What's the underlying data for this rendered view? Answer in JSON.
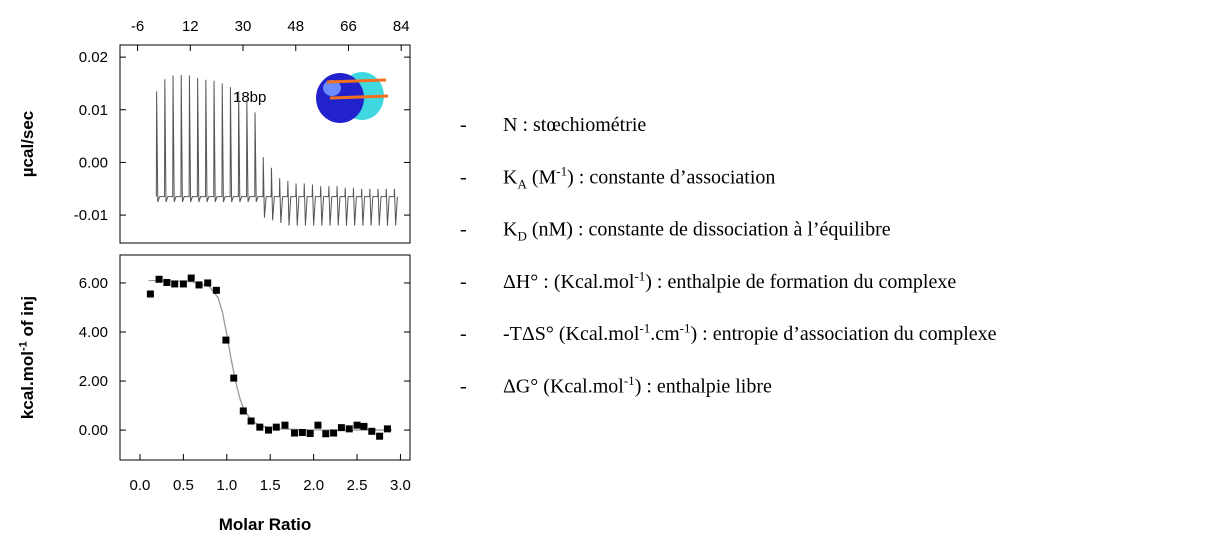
{
  "chart_data": [
    {
      "type": "line",
      "ylabel": "µcal/sec",
      "annotation": "18bp",
      "xaxis_position": "top",
      "xlim": [
        -12,
        87
      ],
      "xticks": [
        -6,
        12,
        30,
        48,
        66,
        84
      ],
      "ylim": [
        -0.0153,
        0.0223
      ],
      "yticks": [
        0.02,
        0.01,
        {
          "value": 0,
          "label": "0.00"
        },
        -0.01
      ],
      "x": [
        0.4,
        0.5,
        0.9,
        1.5,
        3.2,
        3.3,
        3.7,
        4.3,
        6,
        6.1,
        6.5,
        7.1,
        8.8,
        8.9,
        9.3,
        9.9,
        11.6,
        11.7,
        12.1,
        12.7,
        14.4,
        14.5,
        14.9,
        15.5,
        17.2,
        17.3,
        17.7,
        18.3,
        20,
        20.1,
        20.5,
        21.1,
        22.8,
        22.9,
        23.3,
        23.9,
        25.6,
        25.7,
        26.1,
        26.7,
        28.4,
        28.5,
        28.9,
        29.5,
        31.2,
        31.3,
        31.7,
        32.3,
        34,
        34.1,
        34.5,
        35.1,
        36.8,
        36.9,
        37.3,
        37.9,
        39.6,
        39.7,
        40.1,
        40.7,
        42.4,
        42.5,
        42.9,
        43.5,
        45.2,
        45.3,
        45.7,
        46.3,
        48,
        48.1,
        48.5,
        49.1,
        50.8,
        50.9,
        51.3,
        51.9,
        53.6,
        53.7,
        54.1,
        54.7,
        56.4,
        56.5,
        56.9,
        57.5,
        59.2,
        59.3,
        59.7,
        60.3,
        62,
        62.1,
        62.5,
        63.1,
        64.8,
        64.9,
        65.3,
        65.9,
        67.6,
        67.7,
        68.1,
        68.7,
        70.4,
        70.5,
        70.9,
        71.5,
        73.2,
        73.3,
        73.7,
        74.3,
        76,
        76.1,
        76.5,
        77.1,
        78.8,
        78.9,
        79.3,
        79.9,
        81.6,
        81.7,
        82.1,
        82.7
      ],
      "series": [
        {
          "color": "#555555",
          "values": [
            -0.0065,
            0.0135,
            -0.0075,
            -0.0065,
            -0.0065,
            0.0158,
            -0.0075,
            -0.0065,
            -0.0065,
            0.0165,
            -0.0075,
            -0.0065,
            -0.0065,
            0.0166,
            -0.0075,
            -0.0065,
            -0.0065,
            0.0165,
            -0.0075,
            -0.0065,
            -0.0065,
            0.016,
            -0.0075,
            -0.0065,
            -0.0065,
            0.0157,
            -0.0075,
            -0.0065,
            -0.0065,
            0.0155,
            -0.0075,
            -0.0065,
            -0.0065,
            0.015,
            -0.0075,
            -0.0065,
            -0.0065,
            0.0143,
            -0.0075,
            -0.0065,
            -0.0065,
            0.0135,
            -0.0075,
            -0.0065,
            -0.0065,
            0.012,
            -0.0075,
            -0.0065,
            -0.0065,
            0.0095,
            -0.0075,
            -0.0065,
            -0.0065,
            0.001,
            -0.0105,
            -0.0065,
            -0.0065,
            -0.001,
            -0.011,
            -0.0065,
            -0.0065,
            -0.003,
            -0.0115,
            -0.0065,
            -0.0065,
            -0.0035,
            -0.012,
            -0.0065,
            -0.0065,
            -0.004,
            -0.012,
            -0.0065,
            -0.0065,
            -0.004,
            -0.012,
            -0.0065,
            -0.0065,
            -0.0042,
            -0.012,
            -0.0065,
            -0.0065,
            -0.0045,
            -0.012,
            -0.0065,
            -0.0065,
            -0.0045,
            -0.012,
            -0.0065,
            -0.0065,
            -0.0045,
            -0.012,
            -0.0065,
            -0.0065,
            -0.0048,
            -0.012,
            -0.0065,
            -0.0065,
            -0.0048,
            -0.012,
            -0.0065,
            -0.0065,
            -0.005,
            -0.012,
            -0.0065,
            -0.0065,
            -0.005,
            -0.012,
            -0.0065,
            -0.0065,
            -0.005,
            -0.012,
            -0.0065,
            -0.0065,
            -0.005,
            -0.012,
            -0.0065,
            -0.0065,
            -0.005,
            -0.012,
            -0.0065
          ]
        }
      ]
    },
    {
      "type": "scatter",
      "xlabel": "Molar Ratio",
      "ylabel": [
        "kcal.mol",
        {
          "sup": "-1"
        },
        " of inj"
      ],
      "xlim": [
        -0.23,
        3.11
      ],
      "xticks": [
        {
          "value": 0,
          "label": "0.0"
        },
        0.5,
        {
          "value": 1,
          "label": "1.0"
        },
        1.5,
        {
          "value": 2,
          "label": "2.0"
        },
        2.5,
        {
          "value": 3,
          "label": "3.0"
        }
      ],
      "ylim": [
        -1.22,
        7.14
      ],
      "yticks": [
        {
          "value": 6,
          "label": "6.00"
        },
        {
          "value": 4,
          "label": "4.00"
        },
        {
          "value": 2,
          "label": "2.00"
        },
        {
          "value": 0,
          "label": "0.00"
        }
      ],
      "series": [
        {
          "mode": "line",
          "color": "#999999",
          "x": [
            0.1,
            0.6,
            0.8,
            0.9,
            0.95,
            1,
            1.05,
            1.1,
            1.15,
            1.2,
            1.3,
            1.4,
            1.6,
            2,
            2.9
          ],
          "values": [
            6.1,
            6.05,
            5.85,
            5.4,
            4.8,
            3.9,
            2.9,
            2,
            1.3,
            0.8,
            0.35,
            0.15,
            0.05,
            0.01,
            0
          ]
        },
        {
          "mode": "markers",
          "color": "#000000",
          "x": [
            0.12,
            0.22,
            0.31,
            0.4,
            0.5,
            0.59,
            0.68,
            0.78,
            0.88,
            0.99,
            1.08,
            1.19,
            1.28,
            1.38,
            1.48,
            1.57,
            1.67,
            1.78,
            1.87,
            1.96,
            2.05,
            2.14,
            2.23,
            2.32,
            2.41,
            2.5,
            2.58,
            2.67,
            2.76,
            2.85
          ],
          "values": [
            5.55,
            6.15,
            6.02,
            5.96,
            5.96,
            6.2,
            5.92,
            6,
            5.7,
            3.67,
            2.12,
            0.78,
            0.37,
            0.12,
            0,
            0.12,
            0.2,
            -0.12,
            -0.1,
            -0.14,
            0.2,
            -0.15,
            -0.12,
            0.1,
            0.05,
            0.2,
            0.15,
            -0.05,
            -0.25,
            0.05
          ]
        }
      ]
    }
  ],
  "list": {
    "bullet": "-",
    "items": [
      [
        "N : stœchiométrie"
      ],
      [
        "K",
        {
          "sub": "A"
        },
        " (M",
        {
          "sup": "-1"
        },
        ") : constante d’association"
      ],
      [
        "K",
        {
          "sub": "D"
        },
        " (nM) : constante de dissociation à l’équilibre"
      ],
      [
        "ΔH° : (Kcal.mol",
        {
          "sup": "-1"
        },
        ") : enthalpie de formation du complexe"
      ],
      [
        "-TΔS° (Kcal.mol",
        {
          "sup": "-1"
        },
        ".cm",
        {
          "sup": "-1"
        },
        ") : entropie d’association du complexe"
      ],
      [
        "ΔG° (Kcal.mol",
        {
          "sup": "-1"
        },
        ") : enthalpie libre"
      ]
    ]
  }
}
